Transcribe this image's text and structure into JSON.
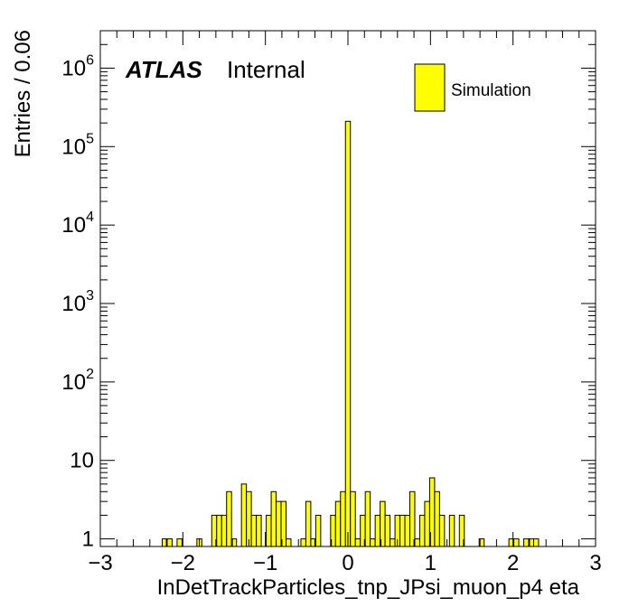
{
  "chart_data": {
    "type": "bar",
    "title": "",
    "experiment_label": "ATLAS",
    "status_label": "Internal",
    "xlabel": "InDetTrackParticles_tnp_JPsi_muon_p4 eta",
    "ylabel": "Entries / 0.06",
    "xlim": [
      -3,
      3
    ],
    "ylim": [
      0.8,
      3000000
    ],
    "y_scale": "log",
    "bin_width": 0.06,
    "grid": false,
    "legend_position": "top-right",
    "series": [
      {
        "name": "Simulation",
        "color": "#ffff00",
        "edge_color": "#000000",
        "bins": [
          {
            "x": -2.22,
            "value": 1
          },
          {
            "x": -2.16,
            "value": 1
          },
          {
            "x": -2.04,
            "value": 1
          },
          {
            "x": -1.8,
            "value": 1
          },
          {
            "x": -1.62,
            "value": 2
          },
          {
            "x": -1.56,
            "value": 2
          },
          {
            "x": -1.5,
            "value": 2
          },
          {
            "x": -1.44,
            "value": 4
          },
          {
            "x": -1.38,
            "value": 1
          },
          {
            "x": -1.26,
            "value": 5
          },
          {
            "x": -1.2,
            "value": 4
          },
          {
            "x": -1.14,
            "value": 2
          },
          {
            "x": -1.08,
            "value": 2
          },
          {
            "x": -0.96,
            "value": 2
          },
          {
            "x": -0.9,
            "value": 4
          },
          {
            "x": -0.84,
            "value": 3
          },
          {
            "x": -0.78,
            "value": 3
          },
          {
            "x": -0.72,
            "value": 1
          },
          {
            "x": -0.54,
            "value": 1
          },
          {
            "x": -0.48,
            "value": 3
          },
          {
            "x": -0.42,
            "value": 1
          },
          {
            "x": -0.36,
            "value": 2
          },
          {
            "x": -0.18,
            "value": 2
          },
          {
            "x": -0.12,
            "value": 3
          },
          {
            "x": -0.06,
            "value": 4
          },
          {
            "x": 0.0,
            "value": 210000
          },
          {
            "x": 0.06,
            "value": 4
          },
          {
            "x": 0.12,
            "value": 1
          },
          {
            "x": 0.18,
            "value": 2
          },
          {
            "x": 0.24,
            "value": 4
          },
          {
            "x": 0.3,
            "value": 1
          },
          {
            "x": 0.36,
            "value": 2
          },
          {
            "x": 0.42,
            "value": 3
          },
          {
            "x": 0.48,
            "value": 2
          },
          {
            "x": 0.54,
            "value": 1
          },
          {
            "x": 0.6,
            "value": 2
          },
          {
            "x": 0.66,
            "value": 2
          },
          {
            "x": 0.72,
            "value": 2
          },
          {
            "x": 0.78,
            "value": 4
          },
          {
            "x": 0.84,
            "value": 1
          },
          {
            "x": 0.9,
            "value": 2
          },
          {
            "x": 0.96,
            "value": 3
          },
          {
            "x": 1.02,
            "value": 6
          },
          {
            "x": 1.08,
            "value": 4
          },
          {
            "x": 1.14,
            "value": 2
          },
          {
            "x": 1.26,
            "value": 2
          },
          {
            "x": 1.38,
            "value": 2
          },
          {
            "x": 1.62,
            "value": 1
          },
          {
            "x": 1.98,
            "value": 1
          },
          {
            "x": 2.04,
            "value": 1
          },
          {
            "x": 2.16,
            "value": 1
          },
          {
            "x": 2.22,
            "value": 1
          },
          {
            "x": 2.28,
            "value": 1
          }
        ]
      }
    ],
    "x_ticks": [
      {
        "value": -3,
        "label": "−3"
      },
      {
        "value": -2,
        "label": "−2"
      },
      {
        "value": -1,
        "label": "−1"
      },
      {
        "value": 0,
        "label": "0"
      },
      {
        "value": 1,
        "label": "1"
      },
      {
        "value": 2,
        "label": "2"
      },
      {
        "value": 3,
        "label": "3"
      }
    ],
    "y_ticks": [
      {
        "value": 1,
        "base": "1",
        "exp": ""
      },
      {
        "value": 10,
        "base": "10",
        "exp": ""
      },
      {
        "value": 100,
        "base": "10",
        "exp": "2"
      },
      {
        "value": 1000,
        "base": "10",
        "exp": "3"
      },
      {
        "value": 10000,
        "base": "10",
        "exp": "4"
      },
      {
        "value": 100000,
        "base": "10",
        "exp": "5"
      },
      {
        "value": 1000000,
        "base": "10",
        "exp": "6"
      }
    ]
  }
}
